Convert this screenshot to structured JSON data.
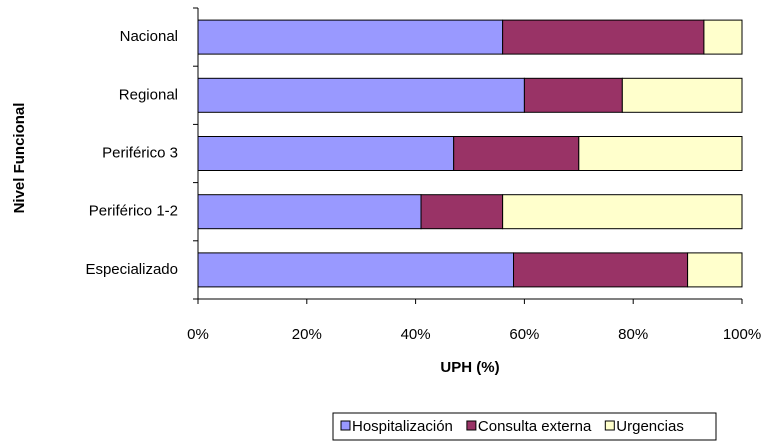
{
  "chart_data": {
    "type": "stacked_barh",
    "categories": [
      "Nacional",
      "Regional",
      "Periférico 3",
      "Periférico 1-2",
      "Especializado"
    ],
    "series": [
      {
        "name": "Hospitalización",
        "color": "#9999ff",
        "values": [
          56,
          60,
          47,
          41,
          58
        ]
      },
      {
        "name": "Consulta externa",
        "color": "#993366",
        "values": [
          37,
          18,
          23,
          15,
          32
        ]
      },
      {
        "name": "Urgencias",
        "color": "#ffffcc",
        "values": [
          7,
          22,
          30,
          44,
          10
        ]
      }
    ],
    "xlabel": "UPH (%)",
    "ylabel": "Nivel Funcional",
    "xlim": [
      0,
      100
    ],
    "xticks": [
      {
        "value": 0,
        "label": "0%"
      },
      {
        "value": 20,
        "label": "20%"
      },
      {
        "value": 40,
        "label": "40%"
      },
      {
        "value": 60,
        "label": "60%"
      },
      {
        "value": 80,
        "label": "80%"
      },
      {
        "value": 100,
        "label": "100%"
      }
    ],
    "grid": false,
    "legend": "bottom"
  }
}
